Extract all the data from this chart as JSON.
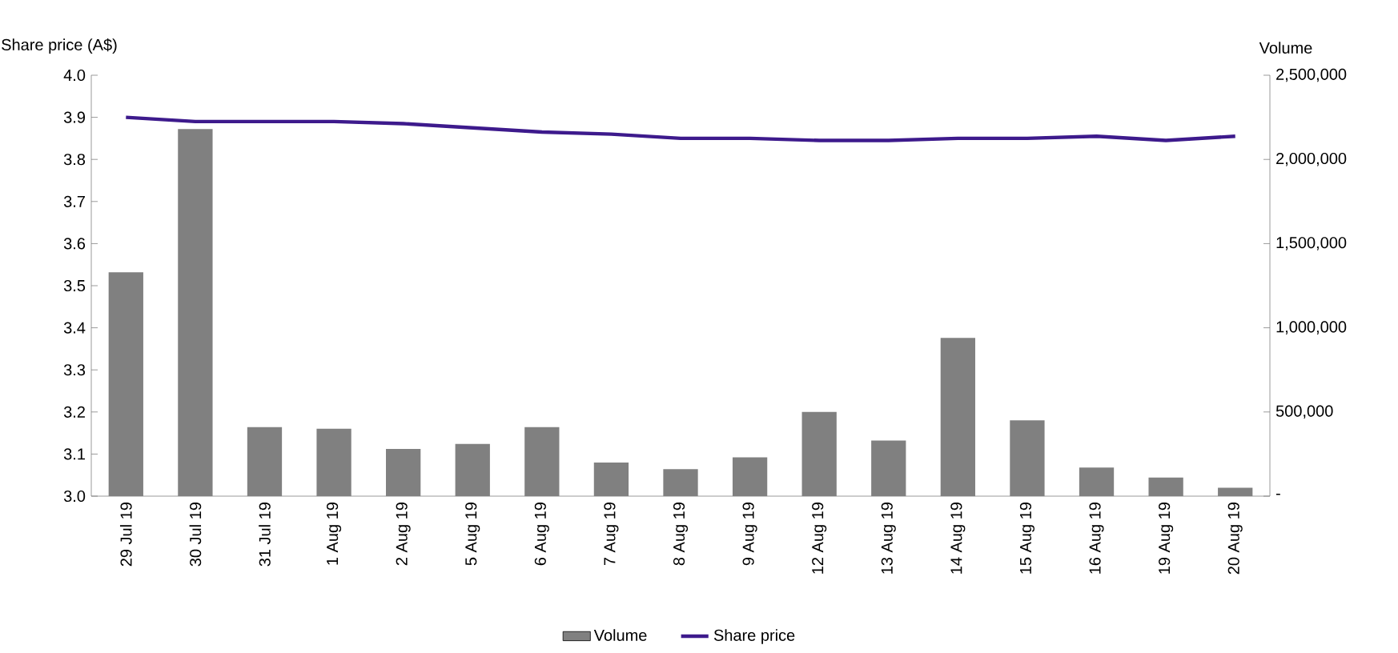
{
  "chart_data": {
    "type": "line",
    "categories": [
      "29 Jul 19",
      "30 Jul 19",
      "31 Jul 19",
      "1 Aug 19",
      "2 Aug 19",
      "5 Aug 19",
      "6 Aug 19",
      "7 Aug 19",
      "8 Aug 19",
      "9 Aug 19",
      "12 Aug 19",
      "13 Aug 19",
      "14 Aug 19",
      "15 Aug 19",
      "16 Aug 19",
      "19 Aug 19",
      "20 Aug 19"
    ],
    "series": [
      {
        "name": "Volume",
        "type": "bar",
        "axis": "y2",
        "color": "#808080",
        "values": [
          1330000,
          2180000,
          410000,
          400000,
          280000,
          310000,
          410000,
          200000,
          160000,
          230000,
          500000,
          330000,
          940000,
          450000,
          170000,
          110000,
          50000
        ]
      },
      {
        "name": "Share price",
        "color": "#3d1a8c",
        "values": [
          3.9,
          3.89,
          3.89,
          3.89,
          3.885,
          3.875,
          3.865,
          3.86,
          3.85,
          3.85,
          3.845,
          3.845,
          3.85,
          3.85,
          3.855,
          3.845,
          3.855
        ]
      }
    ],
    "ylabel": "Share price (A$)",
    "y2label": "Volume",
    "ylim": [
      3.0,
      4.0
    ],
    "yticks": [
      {
        "value": 3.0,
        "label": "3.0"
      },
      {
        "value": 3.1,
        "label": "3.1"
      },
      {
        "value": 3.2,
        "label": "3.2"
      },
      {
        "value": 3.3,
        "label": "3.3"
      },
      {
        "value": 3.4,
        "label": "3.4"
      },
      {
        "value": 3.5,
        "label": "3.5"
      },
      {
        "value": 3.6,
        "label": "3.6"
      },
      {
        "value": 3.7,
        "label": "3.7"
      },
      {
        "value": 3.8,
        "label": "3.8"
      },
      {
        "value": 3.9,
        "label": "3.9"
      },
      {
        "value": 4.0,
        "label": "4.0"
      }
    ],
    "y2lim": [
      0,
      2500000
    ],
    "y2ticks": [
      {
        "value": 0,
        "label": "-"
      },
      {
        "value": 500000,
        "label": "500,000"
      },
      {
        "value": 1000000,
        "label": "1,000,000"
      },
      {
        "value": 1500000,
        "label": "1,500,000"
      },
      {
        "value": 2000000,
        "label": "2,000,000"
      },
      {
        "value": 2500000,
        "label": "2,500,000"
      }
    ],
    "grid": false,
    "legend": "bottom",
    "marker": "none",
    "line_style": "solid"
  }
}
